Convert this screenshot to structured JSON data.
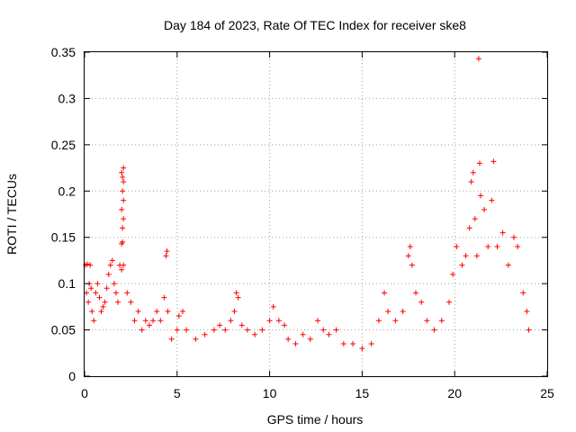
{
  "chart_data": {
    "type": "scatter",
    "title": "Day 184 of 2023, Rate Of TEC Index for receiver ske8",
    "xlabel": "GPS time / hours",
    "ylabel": "ROTI / TECUs",
    "xlim": [
      0,
      25
    ],
    "ylim": [
      0,
      0.35
    ],
    "x_ticks": [
      "0",
      "5",
      "10",
      "15",
      "20",
      "25"
    ],
    "y_ticks": [
      "0",
      "0.05",
      "0.1",
      "0.15",
      "0.2",
      "0.25",
      "0.3",
      "0.35"
    ],
    "grid": true,
    "marker": "+",
    "color": "#ff0000",
    "series": [
      {
        "points": [
          [
            0.05,
            0.12
          ],
          [
            0.15,
            0.121
          ],
          [
            0.3,
            0.12
          ],
          [
            0.1,
            0.09
          ],
          [
            0.2,
            0.08
          ],
          [
            0.25,
            0.1
          ],
          [
            0.35,
            0.095
          ],
          [
            0.4,
            0.07
          ],
          [
            0.5,
            0.06
          ],
          [
            0.6,
            0.09
          ],
          [
            0.7,
            0.1
          ],
          [
            0.8,
            0.085
          ],
          [
            0.9,
            0.07
          ],
          [
            1.0,
            0.075
          ],
          [
            1.1,
            0.08
          ],
          [
            1.2,
            0.095
          ],
          [
            1.3,
            0.11
          ],
          [
            1.4,
            0.12
          ],
          [
            1.5,
            0.125
          ],
          [
            1.6,
            0.1
          ],
          [
            1.7,
            0.09
          ],
          [
            1.8,
            0.08
          ],
          [
            1.9,
            0.12
          ],
          [
            2.0,
            0.115
          ],
          [
            2.1,
            0.12
          ],
          [
            2.05,
            0.145
          ],
          [
            2.0,
            0.143
          ],
          [
            2.05,
            0.16
          ],
          [
            2.1,
            0.17
          ],
          [
            2.0,
            0.18
          ],
          [
            2.1,
            0.19
          ],
          [
            2.05,
            0.2
          ],
          [
            2.1,
            0.21
          ],
          [
            2.0,
            0.22
          ],
          [
            2.1,
            0.225
          ],
          [
            2.05,
            0.215
          ],
          [
            2.3,
            0.09
          ],
          [
            2.5,
            0.08
          ],
          [
            2.7,
            0.06
          ],
          [
            2.9,
            0.07
          ],
          [
            3.1,
            0.05
          ],
          [
            3.3,
            0.06
          ],
          [
            3.5,
            0.055
          ],
          [
            3.7,
            0.06
          ],
          [
            3.9,
            0.07
          ],
          [
            4.1,
            0.06
          ],
          [
            4.3,
            0.085
          ],
          [
            4.4,
            0.13
          ],
          [
            4.45,
            0.135
          ],
          [
            4.5,
            0.07
          ],
          [
            4.7,
            0.04
          ],
          [
            5.0,
            0.05
          ],
          [
            5.1,
            0.065
          ],
          [
            5.3,
            0.07
          ],
          [
            5.5,
            0.05
          ],
          [
            6.0,
            0.04
          ],
          [
            6.5,
            0.045
          ],
          [
            7.0,
            0.05
          ],
          [
            7.3,
            0.055
          ],
          [
            7.6,
            0.05
          ],
          [
            7.9,
            0.06
          ],
          [
            8.1,
            0.07
          ],
          [
            8.2,
            0.09
          ],
          [
            8.3,
            0.085
          ],
          [
            8.5,
            0.055
          ],
          [
            8.8,
            0.05
          ],
          [
            9.2,
            0.045
          ],
          [
            9.6,
            0.05
          ],
          [
            10.0,
            0.06
          ],
          [
            10.2,
            0.075
          ],
          [
            10.5,
            0.06
          ],
          [
            10.8,
            0.055
          ],
          [
            11.0,
            0.04
          ],
          [
            11.4,
            0.035
          ],
          [
            11.8,
            0.045
          ],
          [
            12.2,
            0.04
          ],
          [
            12.6,
            0.06
          ],
          [
            12.9,
            0.05
          ],
          [
            13.2,
            0.045
          ],
          [
            13.6,
            0.05
          ],
          [
            14.0,
            0.035
          ],
          [
            14.5,
            0.035
          ],
          [
            15.0,
            0.03
          ],
          [
            15.5,
            0.035
          ],
          [
            15.9,
            0.06
          ],
          [
            16.2,
            0.09
          ],
          [
            16.4,
            0.07
          ],
          [
            16.8,
            0.06
          ],
          [
            17.2,
            0.07
          ],
          [
            17.5,
            0.13
          ],
          [
            17.6,
            0.14
          ],
          [
            17.7,
            0.12
          ],
          [
            17.9,
            0.09
          ],
          [
            18.2,
            0.08
          ],
          [
            18.5,
            0.06
          ],
          [
            18.9,
            0.05
          ],
          [
            19.3,
            0.06
          ],
          [
            19.7,
            0.08
          ],
          [
            19.9,
            0.11
          ],
          [
            20.1,
            0.14
          ],
          [
            20.4,
            0.12
          ],
          [
            20.6,
            0.13
          ],
          [
            20.8,
            0.16
          ],
          [
            20.9,
            0.21
          ],
          [
            21.0,
            0.22
          ],
          [
            21.1,
            0.17
          ],
          [
            21.2,
            0.13
          ],
          [
            21.4,
            0.195
          ],
          [
            21.35,
            0.23
          ],
          [
            21.3,
            0.343
          ],
          [
            21.6,
            0.18
          ],
          [
            21.8,
            0.14
          ],
          [
            22.0,
            0.19
          ],
          [
            22.1,
            0.232
          ],
          [
            22.3,
            0.14
          ],
          [
            22.6,
            0.155
          ],
          [
            22.9,
            0.12
          ],
          [
            23.2,
            0.15
          ],
          [
            23.4,
            0.14
          ],
          [
            23.7,
            0.09
          ],
          [
            23.9,
            0.07
          ],
          [
            24.0,
            0.05
          ]
        ]
      }
    ]
  }
}
